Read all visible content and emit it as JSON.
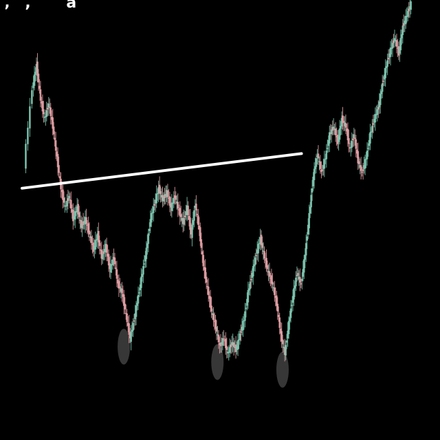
{
  "corner_text": "‚, a",
  "colors": {
    "background": "#000000",
    "up_candle": "#7fc9b3",
    "down_candle": "#e3a1a6",
    "neckline": "#ffffff",
    "bottom_marker": "#4a4a4a"
  },
  "chart_data": {
    "type": "line",
    "title": "",
    "xlabel": "",
    "ylabel": "",
    "grid": false,
    "x_range": [
      0,
      100
    ],
    "y_range": [
      0,
      100
    ],
    "series": [
      {
        "values": [
          [
            0,
            58
          ],
          [
            2,
            78
          ],
          [
            3,
            84
          ],
          [
            4,
            75
          ],
          [
            5,
            70
          ],
          [
            6,
            74
          ],
          [
            7,
            68
          ],
          [
            8,
            60
          ],
          [
            9,
            52
          ],
          [
            10,
            47
          ],
          [
            11,
            50
          ],
          [
            12,
            44
          ],
          [
            13,
            47
          ],
          [
            14,
            42
          ],
          [
            15,
            44
          ],
          [
            16,
            40
          ],
          [
            17,
            36
          ],
          [
            18,
            40
          ],
          [
            19,
            34
          ],
          [
            20,
            37
          ],
          [
            21,
            31
          ],
          [
            22,
            34
          ],
          [
            23,
            27
          ],
          [
            24,
            25
          ],
          [
            25,
            19
          ],
          [
            26,
            13
          ],
          [
            27,
            18
          ],
          [
            28,
            24
          ],
          [
            29,
            30
          ],
          [
            30,
            36
          ],
          [
            31,
            44
          ],
          [
            32,
            48
          ],
          [
            33,
            52
          ],
          [
            34,
            49
          ],
          [
            35,
            51
          ],
          [
            36,
            47
          ],
          [
            37,
            50
          ],
          [
            38,
            46
          ],
          [
            39,
            43
          ],
          [
            40,
            47
          ],
          [
            41,
            40
          ],
          [
            42,
            48
          ],
          [
            43,
            41
          ],
          [
            44,
            32
          ],
          [
            45,
            26
          ],
          [
            46,
            20
          ],
          [
            47,
            16
          ],
          [
            48,
            11
          ],
          [
            49,
            13
          ],
          [
            50,
            9
          ],
          [
            51,
            12
          ],
          [
            52,
            10
          ],
          [
            53,
            14
          ],
          [
            54,
            18
          ],
          [
            55,
            25
          ],
          [
            56,
            30
          ],
          [
            57,
            35
          ],
          [
            58,
            39
          ],
          [
            59,
            34
          ],
          [
            60,
            30
          ],
          [
            61,
            27
          ],
          [
            62,
            22
          ],
          [
            63,
            14
          ],
          [
            64,
            9
          ],
          [
            65,
            17
          ],
          [
            66,
            24
          ],
          [
            67,
            30
          ],
          [
            68,
            27
          ],
          [
            69,
            35
          ],
          [
            70,
            45
          ],
          [
            71,
            55
          ],
          [
            72,
            61
          ],
          [
            73,
            56
          ],
          [
            74,
            60
          ],
          [
            75,
            66
          ],
          [
            76,
            68
          ],
          [
            77,
            64
          ],
          [
            78,
            70
          ],
          [
            79,
            68
          ],
          [
            80,
            62
          ],
          [
            81,
            66
          ],
          [
            82,
            59
          ],
          [
            83,
            56
          ],
          [
            84,
            60
          ],
          [
            85,
            66
          ],
          [
            86,
            70
          ],
          [
            87,
            73
          ],
          [
            88,
            79
          ],
          [
            89,
            84
          ],
          [
            90,
            88
          ],
          [
            91,
            91
          ],
          [
            92,
            87
          ],
          [
            93,
            94
          ],
          [
            94,
            97
          ],
          [
            95,
            100
          ]
        ]
      }
    ],
    "neckline": [
      [
        0,
        52
      ],
      [
        68,
        61
      ]
    ],
    "bottom_markers": [
      [
        24,
        13
      ],
      [
        47,
        9
      ],
      [
        63,
        7
      ]
    ]
  }
}
